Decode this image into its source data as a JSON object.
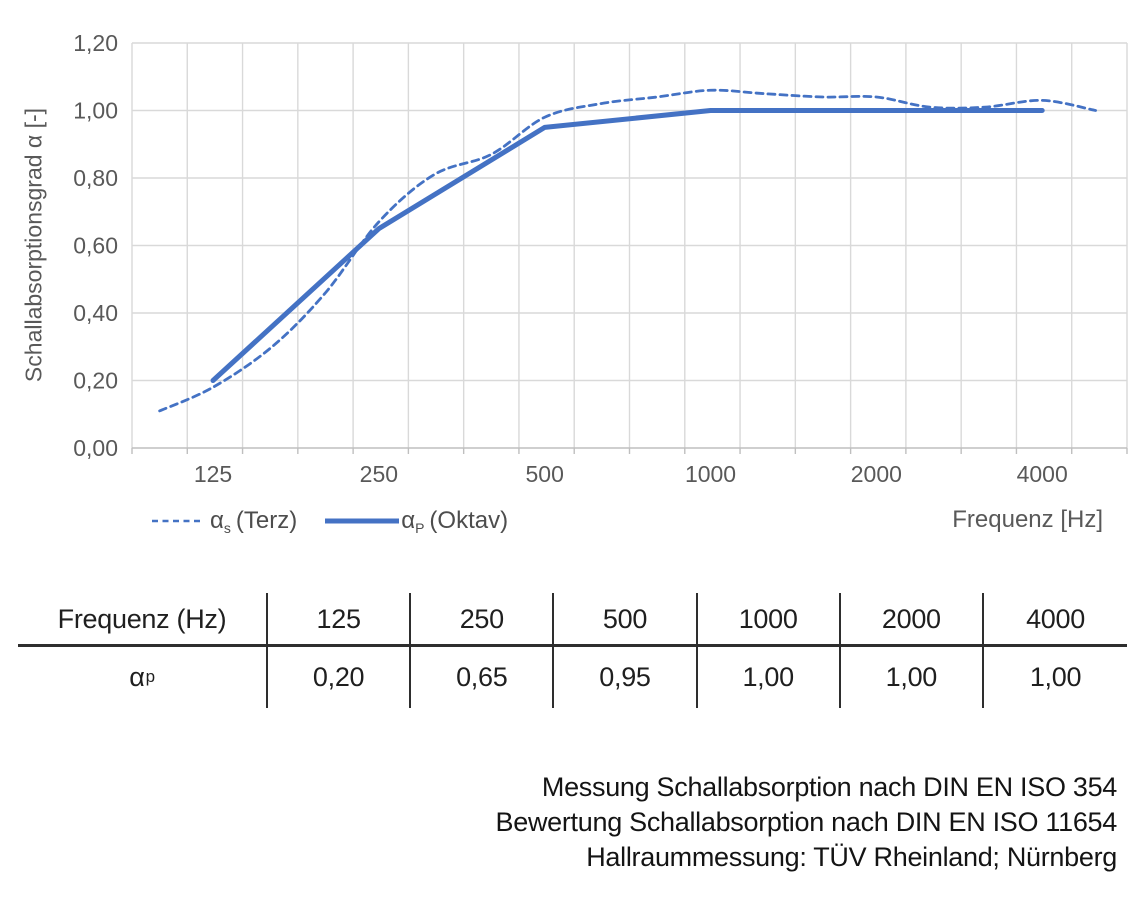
{
  "chart_data": {
    "type": "line",
    "title": "",
    "ylabel": "Schallabsorptionsgrad α [-]",
    "xlabel": "Frequenz [Hz]",
    "ylim": [
      0,
      1.2
    ],
    "ytick_step": 0.2,
    "ytick_labels": [
      "0,00",
      "0,20",
      "0,40",
      "0,60",
      "0,80",
      "1,00",
      "1,20"
    ],
    "x_scale": "logarithmic (third-octave bands 100–5000 Hz)",
    "xticks": [
      {
        "label": "125",
        "f": 125
      },
      {
        "label": "250",
        "f": 250
      },
      {
        "label": "500",
        "f": 500
      },
      {
        "label": "1000",
        "f": 1000
      },
      {
        "label": "2000",
        "f": 2000
      },
      {
        "label": "4000",
        "f": 4000
      }
    ],
    "grid": true,
    "legend_position": "bottom-left",
    "series": [
      {
        "name": "αs (Terz)",
        "style": "dashed",
        "color": "#4472C4",
        "x": [
          100,
          125,
          160,
          200,
          250,
          315,
          400,
          500,
          630,
          800,
          1000,
          1250,
          1600,
          2000,
          2500,
          3150,
          4000,
          5000
        ],
        "values": [
          0.11,
          0.18,
          0.3,
          0.46,
          0.67,
          0.81,
          0.87,
          0.98,
          1.02,
          1.04,
          1.06,
          1.05,
          1.04,
          1.04,
          1.01,
          1.01,
          1.03,
          1.0
        ]
      },
      {
        "name": "αP (Oktav)",
        "style": "solid",
        "color": "#4472C4",
        "x": [
          125,
          250,
          500,
          1000,
          2000,
          4000
        ],
        "values": [
          0.2,
          0.65,
          0.95,
          1.0,
          1.0,
          1.0
        ]
      }
    ]
  },
  "legend": {
    "items": [
      {
        "main": "α",
        "sub": "s",
        "rest": "(Terz)",
        "symbol": "dashed-line"
      },
      {
        "main": "α",
        "sub": "P",
        "rest": "(Oktav)",
        "symbol": "solid-line"
      }
    ]
  },
  "table": {
    "header_label": "Frequenz (Hz)",
    "headers": [
      "125",
      "250",
      "500",
      "1000",
      "2000",
      "4000"
    ],
    "row_label_main": "α",
    "row_label_sub": "p",
    "values": [
      "0,20",
      "0,65",
      "0,95",
      "1,00",
      "1,00",
      "1,00"
    ]
  },
  "footer": {
    "lines": [
      "Messung Schallabsorption nach DIN EN ISO 354",
      "Bewertung Schallabsorption nach DIN EN ISO 11654",
      "Hallraummessung: TÜV Rheinland; Nürnberg"
    ]
  },
  "colors": {
    "line_blue": "#4472C4",
    "grid": "#D9D9D9",
    "axis_line": "#BFBFBF",
    "axis_text": "#595959",
    "table_text": "#1f1f1f"
  }
}
